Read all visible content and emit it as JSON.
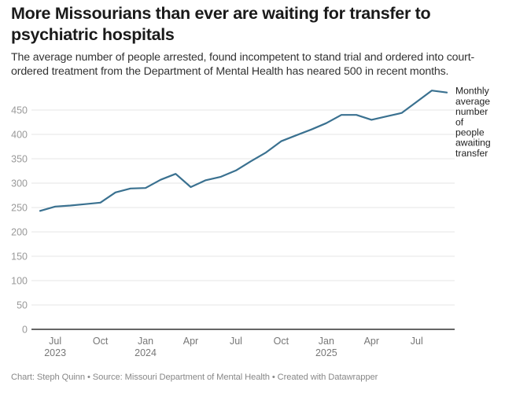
{
  "header": {
    "title": "More Missourians than ever are waiting for transfer to psychiatric hospitals",
    "subtitle": "The average number of people arrested, found incompetent to stand trial and ordered into court-ordered treatment from the Department of Mental Health has neared 500 in recent months."
  },
  "footer": {
    "text": "Chart: Steph Quinn • Source: Missouri Department of Mental Health • Created with Datawrapper"
  },
  "colors": {
    "line": "#3a7190",
    "grid": "#e6e6e6",
    "baseline": "#333333"
  },
  "chart_data": {
    "type": "line",
    "title": "More Missourians than ever are waiting for transfer to psychiatric hospitals",
    "xlabel": "",
    "ylabel": "",
    "ylim": [
      0,
      500
    ],
    "grid": true,
    "yticks": [
      0,
      50,
      100,
      150,
      200,
      250,
      300,
      350,
      400,
      450
    ],
    "xticks": [
      {
        "label": "Jul",
        "sub": "2023",
        "index": 1
      },
      {
        "label": "Oct",
        "sub": "",
        "index": 4
      },
      {
        "label": "Jan",
        "sub": "2024",
        "index": 7
      },
      {
        "label": "Apr",
        "sub": "",
        "index": 10
      },
      {
        "label": "Jul",
        "sub": "",
        "index": 13
      },
      {
        "label": "Oct",
        "sub": "",
        "index": 16
      },
      {
        "label": "Jan",
        "sub": "2025",
        "index": 19
      },
      {
        "label": "Apr",
        "sub": "",
        "index": 22
      },
      {
        "label": "Jul",
        "sub": "",
        "index": 25
      }
    ],
    "x": [
      "2023-06",
      "2023-07",
      "2023-08",
      "2023-09",
      "2023-10",
      "2023-11",
      "2023-12",
      "2024-01",
      "2024-02",
      "2024-03",
      "2024-04",
      "2024-05",
      "2024-06",
      "2024-07",
      "2024-08",
      "2024-09",
      "2024-10",
      "2024-11",
      "2024-12",
      "2025-01",
      "2025-02",
      "2025-03",
      "2025-04",
      "2025-05",
      "2025-06",
      "2025-07",
      "2025-08",
      "2025-09"
    ],
    "series": [
      {
        "name": "Monthly average number of people awaiting transfer",
        "label_lines": [
          "Monthly",
          "average",
          "number",
          "of",
          "people",
          "awaiting",
          "transfer"
        ],
        "values": [
          243,
          252,
          254,
          257,
          260,
          281,
          289,
          290,
          307,
          319,
          292,
          306,
          313,
          326,
          345,
          363,
          386,
          398,
          410,
          423,
          440,
          440,
          430,
          437,
          444,
          467,
          490,
          486
        ]
      }
    ]
  }
}
